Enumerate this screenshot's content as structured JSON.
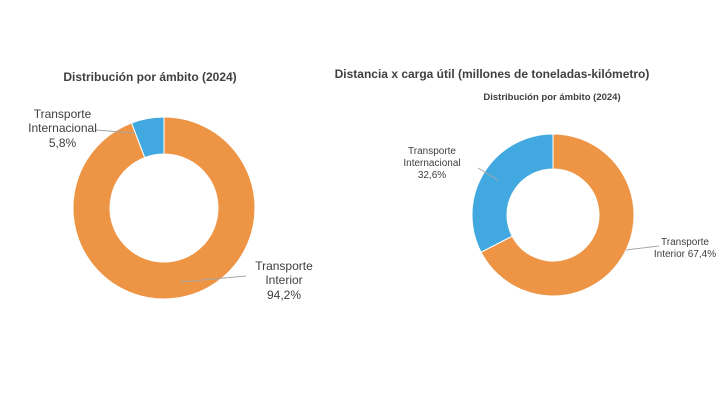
{
  "chart_data": [
    {
      "type": "donut",
      "title": "Distribución por ámbito (2024)",
      "categories": [
        "Transporte Interior",
        "Transporte Internacional"
      ],
      "values": [
        94.2,
        5.8
      ],
      "value_labels": [
        "94,2%",
        "5,8%"
      ],
      "colors": [
        "#ED9445",
        "#41A9DF"
      ]
    },
    {
      "type": "donut",
      "title": "Distancia x carga útil (millones de toneladas-kilómetro)",
      "subtitle": "Distribución por ámbito (2024)",
      "categories": [
        "Transporte Interior",
        "Transporte Internacional"
      ],
      "values": [
        67.4,
        32.6
      ],
      "value_labels": [
        "67,4%",
        "32,6%"
      ],
      "colors": [
        "#ED9445",
        "#41A9DF"
      ]
    }
  ]
}
